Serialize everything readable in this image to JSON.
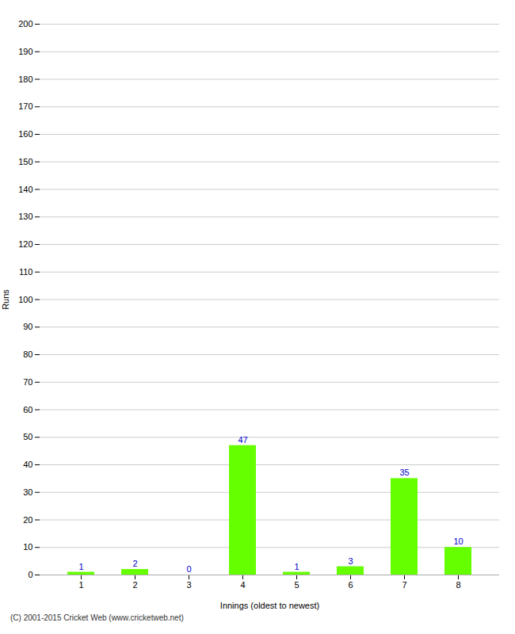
{
  "chart_data": {
    "type": "bar",
    "categories": [
      "1",
      "2",
      "3",
      "4",
      "5",
      "6",
      "7",
      "8"
    ],
    "values": [
      1,
      2,
      0,
      47,
      1,
      3,
      35,
      10
    ],
    "color": "#66ff00",
    "xlabel": "Innings (oldest to newest)",
    "ylabel": "Runs",
    "ylim": [
      0,
      200
    ],
    "yticks": [
      0,
      10,
      20,
      30,
      40,
      50,
      60,
      70,
      80,
      90,
      100,
      110,
      120,
      130,
      140,
      150,
      160,
      170,
      180,
      190,
      200
    ],
    "grid": true,
    "data_labels": true,
    "footer": "(C) 2001-2015 Cricket Web (www.cricketweb.net)"
  }
}
